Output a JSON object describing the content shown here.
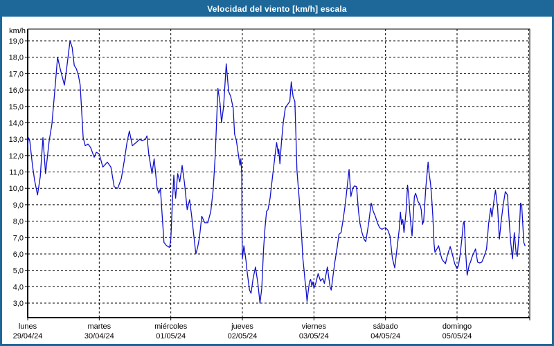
{
  "window": {
    "title": "Velocidad del viento [km/h] escala"
  },
  "colors": {
    "titlebar_bg": "#1d6899",
    "frame": "#1d6899",
    "plot_background": "#ffffff",
    "grid": "#000000",
    "axis": "#000000",
    "line": "#0f0fcd",
    "text": "#000000",
    "title_text": "#ffffff"
  },
  "y_axis": {
    "unit_label": "km/h",
    "min": 3,
    "max": 19,
    "step": 1,
    "tick_labels": [
      "19,0",
      "18,0",
      "17,0",
      "16,0",
      "15,0",
      "14,0",
      "13,0",
      "12,0",
      "11,0",
      "10,0",
      "9,0",
      "8,0",
      "7,0",
      "6,0",
      "5,0",
      "4,0",
      "3,0"
    ]
  },
  "x_axis": {
    "days": [
      {
        "name": "lunes",
        "date": "29/04/24"
      },
      {
        "name": "martes",
        "date": "30/04/24"
      },
      {
        "name": "miércoles",
        "date": "01/05/24"
      },
      {
        "name": "jueves",
        "date": "02/05/24"
      },
      {
        "name": "viernes",
        "date": "03/05/24"
      },
      {
        "name": "sábado",
        "date": "04/05/24"
      },
      {
        "name": "domingo",
        "date": "05/05/24"
      }
    ]
  },
  "chart_data": {
    "type": "line",
    "title": "Velocidad del viento [km/h] escala",
    "xlabel": "",
    "ylabel": "km/h",
    "ylim": [
      3,
      19
    ],
    "x_unit": "hours since lunes 29/04/24 00:00",
    "x_range": [
      0,
      168
    ],
    "grid": "dashed",
    "legend_position": "none",
    "series": [
      {
        "name": "Velocidad del viento [km/h]",
        "points": [
          [
            0,
            12.5
          ],
          [
            0.2,
            13.1
          ],
          [
            0.7,
            12.9
          ],
          [
            1.6,
            11.4
          ],
          [
            2.3,
            10.5
          ],
          [
            3.3,
            9.6
          ],
          [
            4.2,
            10.7
          ],
          [
            5.1,
            13.1
          ],
          [
            6.0,
            10.9
          ],
          [
            7.2,
            12.9
          ],
          [
            8.1,
            13.9
          ],
          [
            9.1,
            16.0
          ],
          [
            10.0,
            18.0
          ],
          [
            10.9,
            17.3
          ],
          [
            12.3,
            16.3
          ],
          [
            13.2,
            17.5
          ],
          [
            14.2,
            19.0
          ],
          [
            14.9,
            18.6
          ],
          [
            15.6,
            17.5
          ],
          [
            16.3,
            17.3
          ],
          [
            17.0,
            16.9
          ],
          [
            17.6,
            16.3
          ],
          [
            18.6,
            13.1
          ],
          [
            19.3,
            12.6
          ],
          [
            20.2,
            12.7
          ],
          [
            21.1,
            12.5
          ],
          [
            22.3,
            11.9
          ],
          [
            23.0,
            12.2
          ],
          [
            24.0,
            12.1
          ],
          [
            25.2,
            11.3
          ],
          [
            26.7,
            11.6
          ],
          [
            27.9,
            11.3
          ],
          [
            29.0,
            10.1
          ],
          [
            30.2,
            10.0
          ],
          [
            31.4,
            10.6
          ],
          [
            32.5,
            11.8
          ],
          [
            33.3,
            12.8
          ],
          [
            34.1,
            13.5
          ],
          [
            35.1,
            12.6
          ],
          [
            36.4,
            12.8
          ],
          [
            37.6,
            13.0
          ],
          [
            38.3,
            12.9
          ],
          [
            39.5,
            13.0
          ],
          [
            40.0,
            13.2
          ],
          [
            40.6,
            12.1
          ],
          [
            41.7,
            10.9
          ],
          [
            42.4,
            11.8
          ],
          [
            43.4,
            10.0
          ],
          [
            44.0,
            9.7
          ],
          [
            44.5,
            10.0
          ],
          [
            45.7,
            6.7
          ],
          [
            46.6,
            6.5
          ],
          [
            47.6,
            6.4
          ],
          [
            48.0,
            6.9
          ],
          [
            48.5,
            9.0
          ],
          [
            49.0,
            10.8
          ],
          [
            49.6,
            9.4
          ],
          [
            50.3,
            10.9
          ],
          [
            51.0,
            10.4
          ],
          [
            51.8,
            11.4
          ],
          [
            52.6,
            10.3
          ],
          [
            53.5,
            8.7
          ],
          [
            54.3,
            9.3
          ],
          [
            55.0,
            8.3
          ],
          [
            55.8,
            7.0
          ],
          [
            56.4,
            6.0
          ],
          [
            57.0,
            6.4
          ],
          [
            57.6,
            7.0
          ],
          [
            58.4,
            8.3
          ],
          [
            59.4,
            7.9
          ],
          [
            60.4,
            7.9
          ],
          [
            61.4,
            8.6
          ],
          [
            62.2,
            9.9
          ],
          [
            62.9,
            12.0
          ],
          [
            63.8,
            16.1
          ],
          [
            64.5,
            15.2
          ],
          [
            65.0,
            14.0
          ],
          [
            65.7,
            15.0
          ],
          [
            66.6,
            17.6
          ],
          [
            67.4,
            15.9
          ],
          [
            68.1,
            15.6
          ],
          [
            68.9,
            14.9
          ],
          [
            69.4,
            13.3
          ],
          [
            70.0,
            12.9
          ],
          [
            70.8,
            11.9
          ],
          [
            71.2,
            11.4
          ],
          [
            71.5,
            11.8
          ],
          [
            71.8,
            10.9
          ],
          [
            71.9,
            7.0
          ],
          [
            72.0,
            5.7
          ],
          [
            72.5,
            6.5
          ],
          [
            73.2,
            5.6
          ],
          [
            73.6,
            4.9
          ],
          [
            74.4,
            3.8
          ],
          [
            74.9,
            3.6
          ],
          [
            75.6,
            4.5
          ],
          [
            76.4,
            5.2
          ],
          [
            77.2,
            4.2
          ],
          [
            77.9,
            3.0
          ],
          [
            78.5,
            3.9
          ],
          [
            79.1,
            6.3
          ],
          [
            79.6,
            7.6
          ],
          [
            80.1,
            8.6
          ],
          [
            80.6,
            8.7
          ],
          [
            81.3,
            9.4
          ],
          [
            82.1,
            10.7
          ],
          [
            83.0,
            12.1
          ],
          [
            83.5,
            12.8
          ],
          [
            84.0,
            12.1
          ],
          [
            84.2,
            12.4
          ],
          [
            84.6,
            11.5
          ],
          [
            85.1,
            12.8
          ],
          [
            85.7,
            14.0
          ],
          [
            86.4,
            14.9
          ],
          [
            87.1,
            15.1
          ],
          [
            87.9,
            15.3
          ],
          [
            88.4,
            16.5
          ],
          [
            89.0,
            15.6
          ],
          [
            89.6,
            15.3
          ],
          [
            90.0,
            13.0
          ],
          [
            90.3,
            11.1
          ],
          [
            90.7,
            10.2
          ],
          [
            91.1,
            9.3
          ],
          [
            91.5,
            8.1
          ],
          [
            91.9,
            7.0
          ],
          [
            92.3,
            5.7
          ],
          [
            92.7,
            5.0
          ],
          [
            93.0,
            4.4
          ],
          [
            93.4,
            3.75
          ],
          [
            93.7,
            3.1
          ],
          [
            94.1,
            3.75
          ],
          [
            94.5,
            4.3
          ],
          [
            94.9,
            4.45
          ],
          [
            95.3,
            4.05
          ],
          [
            95.7,
            4.3
          ],
          [
            96.0,
            3.9
          ],
          [
            96.6,
            4.2
          ],
          [
            97.4,
            4.8
          ],
          [
            98.2,
            4.35
          ],
          [
            99.0,
            4.5
          ],
          [
            99.5,
            4.2
          ],
          [
            100.5,
            5.2
          ],
          [
            101.4,
            4.0
          ],
          [
            101.8,
            3.8
          ],
          [
            102.5,
            4.8
          ],
          [
            103.0,
            5.5
          ],
          [
            103.8,
            6.4
          ],
          [
            104.4,
            7.2
          ],
          [
            105.1,
            7.3
          ],
          [
            105.8,
            8.1
          ],
          [
            106.5,
            9.0
          ],
          [
            107.1,
            10.0
          ],
          [
            107.8,
            11.15
          ],
          [
            108.4,
            9.5
          ],
          [
            109.0,
            10.0
          ],
          [
            109.6,
            10.15
          ],
          [
            110.3,
            10.1
          ],
          [
            110.9,
            8.7
          ],
          [
            111.4,
            7.9
          ],
          [
            112.1,
            7.3
          ],
          [
            112.8,
            6.9
          ],
          [
            113.4,
            6.75
          ],
          [
            114.3,
            7.8
          ],
          [
            115.2,
            9.1
          ],
          [
            115.9,
            8.6
          ],
          [
            116.6,
            8.3
          ],
          [
            117.3,
            7.9
          ],
          [
            118.0,
            7.6
          ],
          [
            118.8,
            7.5
          ],
          [
            119.3,
            7.55
          ],
          [
            120.0,
            7.6
          ],
          [
            120.8,
            7.45
          ],
          [
            121.5,
            7.1
          ],
          [
            122.3,
            5.75
          ],
          [
            123.1,
            5.15
          ],
          [
            123.9,
            6.4
          ],
          [
            124.6,
            7.5
          ],
          [
            125.0,
            8.55
          ],
          [
            125.4,
            7.8
          ],
          [
            125.8,
            8.1
          ],
          [
            126.2,
            7.3
          ],
          [
            126.9,
            8.6
          ],
          [
            127.4,
            10.2
          ],
          [
            127.8,
            9.6
          ],
          [
            128.1,
            8.7
          ],
          [
            128.5,
            7.8
          ],
          [
            128.9,
            7.1
          ],
          [
            129.7,
            9.5
          ],
          [
            130.1,
            9.7
          ],
          [
            130.9,
            9.2
          ],
          [
            131.6,
            9.0
          ],
          [
            132.0,
            8.7
          ],
          [
            132.4,
            7.8
          ],
          [
            132.8,
            8.0
          ],
          [
            133.5,
            10.0
          ],
          [
            134.0,
            11.0
          ],
          [
            134.3,
            11.6
          ],
          [
            134.7,
            10.8
          ],
          [
            135.1,
            10.3
          ],
          [
            135.5,
            9.4
          ],
          [
            135.9,
            8.25
          ],
          [
            136.3,
            6.6
          ],
          [
            136.6,
            6.1
          ],
          [
            137.4,
            6.35
          ],
          [
            137.8,
            6.5
          ],
          [
            138.6,
            5.9
          ],
          [
            139.0,
            5.65
          ],
          [
            139.7,
            5.5
          ],
          [
            140.1,
            5.4
          ],
          [
            140.9,
            6.0
          ],
          [
            141.7,
            6.45
          ],
          [
            142.4,
            6.0
          ],
          [
            143.2,
            5.4
          ],
          [
            144.0,
            5.1
          ],
          [
            144.5,
            5.3
          ],
          [
            145.0,
            5.9
          ],
          [
            145.6,
            6.9
          ],
          [
            146.1,
            7.85
          ],
          [
            146.4,
            8.0
          ],
          [
            146.9,
            6.05
          ],
          [
            147.4,
            4.7
          ],
          [
            148.1,
            5.35
          ],
          [
            148.5,
            5.5
          ],
          [
            149.0,
            5.8
          ],
          [
            149.7,
            6.1
          ],
          [
            150.2,
            6.3
          ],
          [
            150.9,
            5.5
          ],
          [
            151.6,
            5.45
          ],
          [
            152.3,
            5.5
          ],
          [
            153.0,
            5.8
          ],
          [
            153.9,
            6.3
          ],
          [
            154.6,
            7.85
          ],
          [
            155.3,
            8.8
          ],
          [
            155.7,
            8.25
          ],
          [
            156.4,
            9.3
          ],
          [
            156.9,
            9.9
          ],
          [
            157.6,
            8.8
          ],
          [
            158.2,
            6.9
          ],
          [
            158.8,
            8.0
          ],
          [
            159.5,
            9.0
          ],
          [
            160.2,
            9.8
          ],
          [
            160.9,
            9.6
          ],
          [
            161.5,
            8.0
          ],
          [
            162.0,
            6.7
          ],
          [
            162.6,
            5.7
          ],
          [
            163.2,
            7.3
          ],
          [
            163.8,
            6.1
          ],
          [
            164.2,
            5.85
          ],
          [
            164.9,
            7.5
          ],
          [
            165.3,
            9.1
          ],
          [
            165.7,
            8.95
          ],
          [
            166.4,
            6.7
          ],
          [
            166.8,
            6.5
          ]
        ]
      }
    ]
  }
}
